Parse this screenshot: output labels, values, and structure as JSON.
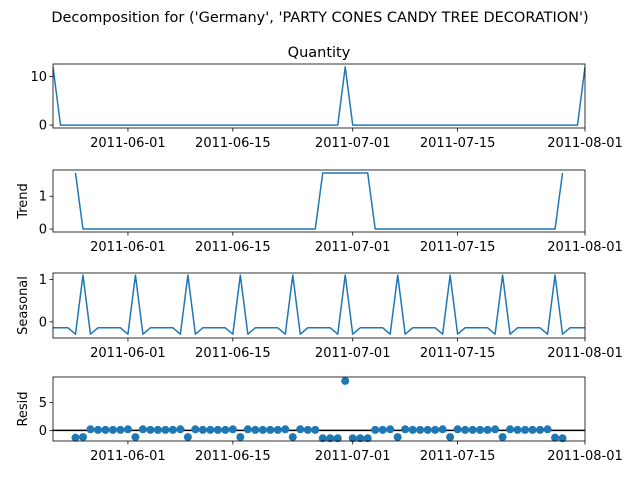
{
  "figure_title": "Decomposition for ('Germany', 'PARTY CONES CANDY TREE DECORATION')",
  "line_color": "#1f77b4",
  "marker_color": "#1f77b4",
  "chart_data": [
    {
      "type": "line",
      "title": "Quantity",
      "ylabel": "",
      "xlim": [
        "2011-05-22",
        "2011-08-01"
      ],
      "ylim": [
        -0.6,
        12.6
      ],
      "yticks": [
        0,
        10
      ],
      "xticks": [
        "2011-06-01",
        "2011-06-15",
        "2011-07-01",
        "2011-07-15",
        "2011-08-01"
      ],
      "grid": false,
      "series": [
        {
          "points": [
            [
              "2011-05-22",
              12
            ],
            [
              "2011-05-23",
              0
            ],
            [
              "2011-06-29",
              0
            ],
            [
              "2011-06-30",
              12
            ],
            [
              "2011-07-01",
              0
            ],
            [
              "2011-07-31",
              0
            ],
            [
              "2011-08-01",
              12
            ]
          ]
        }
      ]
    },
    {
      "type": "line",
      "title": "",
      "ylabel": "Trend",
      "xlim": [
        "2011-05-22",
        "2011-08-01"
      ],
      "ylim": [
        -0.09,
        1.8
      ],
      "yticks": [
        0,
        1
      ],
      "xticks": [
        "2011-06-01",
        "2011-06-15",
        "2011-07-01",
        "2011-07-15",
        "2011-08-01"
      ],
      "grid": false,
      "series": [
        {
          "points": [
            [
              "2011-05-25",
              1.71
            ],
            [
              "2011-05-26",
              0
            ],
            [
              "2011-06-26",
              0
            ],
            [
              "2011-06-27",
              1.71
            ],
            [
              "2011-07-03",
              1.71
            ],
            [
              "2011-07-04",
              0
            ],
            [
              "2011-07-28",
              0
            ],
            [
              "2011-07-29",
              1.71
            ]
          ]
        }
      ]
    },
    {
      "type": "line",
      "title": "",
      "ylabel": "Seasonal",
      "xlim": [
        "2011-05-22",
        "2011-08-01"
      ],
      "ylim": [
        -0.38,
        1.15
      ],
      "yticks": [
        0,
        1
      ],
      "xticks": [
        "2011-06-01",
        "2011-06-15",
        "2011-07-01",
        "2011-07-15",
        "2011-08-01"
      ],
      "grid": false,
      "pattern": {
        "start": "2011-05-22",
        "end": "2011-08-01",
        "period": 7,
        "cycle": [
          -0.14,
          -0.14,
          -0.14,
          -0.29,
          1.1,
          -0.29,
          -0.14
        ]
      }
    },
    {
      "type": "scatter",
      "title": "",
      "ylabel": "Resid",
      "xlim": [
        "2011-05-22",
        "2011-08-01"
      ],
      "ylim": [
        -1.9,
        9.6
      ],
      "yticks": [
        0,
        5
      ],
      "xticks": [
        "2011-06-01",
        "2011-06-15",
        "2011-07-01",
        "2011-07-15",
        "2011-08-01"
      ],
      "hline": 0,
      "grid": false,
      "series": [
        {
          "points": [
            [
              "2011-05-25",
              -1.3
            ],
            [
              "2011-05-26",
              -1.2
            ],
            [
              "2011-05-27",
              0.2
            ],
            [
              "2011-05-28",
              0.1
            ],
            [
              "2011-05-29",
              0.1
            ],
            [
              "2011-05-30",
              0.1
            ],
            [
              "2011-05-31",
              0.1
            ],
            [
              "2011-06-01",
              0.2
            ],
            [
              "2011-06-02",
              -1.2
            ],
            [
              "2011-06-03",
              0.2
            ],
            [
              "2011-06-04",
              0.1
            ],
            [
              "2011-06-05",
              0.1
            ],
            [
              "2011-06-06",
              0.1
            ],
            [
              "2011-06-07",
              0.1
            ],
            [
              "2011-06-08",
              0.2
            ],
            [
              "2011-06-09",
              -1.2
            ],
            [
              "2011-06-10",
              0.2
            ],
            [
              "2011-06-11",
              0.1
            ],
            [
              "2011-06-12",
              0.1
            ],
            [
              "2011-06-13",
              0.1
            ],
            [
              "2011-06-14",
              0.1
            ],
            [
              "2011-06-15",
              0.2
            ],
            [
              "2011-06-16",
              -1.2
            ],
            [
              "2011-06-17",
              0.2
            ],
            [
              "2011-06-18",
              0.1
            ],
            [
              "2011-06-19",
              0.1
            ],
            [
              "2011-06-20",
              0.1
            ],
            [
              "2011-06-21",
              0.1
            ],
            [
              "2011-06-22",
              0.2
            ],
            [
              "2011-06-23",
              -1.2
            ],
            [
              "2011-06-24",
              0.2
            ],
            [
              "2011-06-25",
              0.1
            ],
            [
              "2011-06-26",
              0.1
            ],
            [
              "2011-06-27",
              -1.4
            ],
            [
              "2011-06-28",
              -1.4
            ],
            [
              "2011-06-29",
              -1.4
            ],
            [
              "2011-06-30",
              8.9
            ],
            [
              "2011-07-01",
              -1.4
            ],
            [
              "2011-07-02",
              -1.4
            ],
            [
              "2011-07-03",
              -1.4
            ],
            [
              "2011-07-04",
              0.1
            ],
            [
              "2011-07-05",
              0.1
            ],
            [
              "2011-07-06",
              0.2
            ],
            [
              "2011-07-07",
              -1.2
            ],
            [
              "2011-07-08",
              0.2
            ],
            [
              "2011-07-09",
              0.1
            ],
            [
              "2011-07-10",
              0.1
            ],
            [
              "2011-07-11",
              0.1
            ],
            [
              "2011-07-12",
              0.1
            ],
            [
              "2011-07-13",
              0.2
            ],
            [
              "2011-07-14",
              -1.2
            ],
            [
              "2011-07-15",
              0.2
            ],
            [
              "2011-07-16",
              0.1
            ],
            [
              "2011-07-17",
              0.1
            ],
            [
              "2011-07-18",
              0.1
            ],
            [
              "2011-07-19",
              0.1
            ],
            [
              "2011-07-20",
              0.2
            ],
            [
              "2011-07-21",
              -1.2
            ],
            [
              "2011-07-22",
              0.2
            ],
            [
              "2011-07-23",
              0.1
            ],
            [
              "2011-07-24",
              0.1
            ],
            [
              "2011-07-25",
              0.1
            ],
            [
              "2011-07-26",
              0.1
            ],
            [
              "2011-07-27",
              0.2
            ],
            [
              "2011-07-28",
              -1.3
            ],
            [
              "2011-07-29",
              -1.4
            ]
          ]
        }
      ]
    }
  ]
}
